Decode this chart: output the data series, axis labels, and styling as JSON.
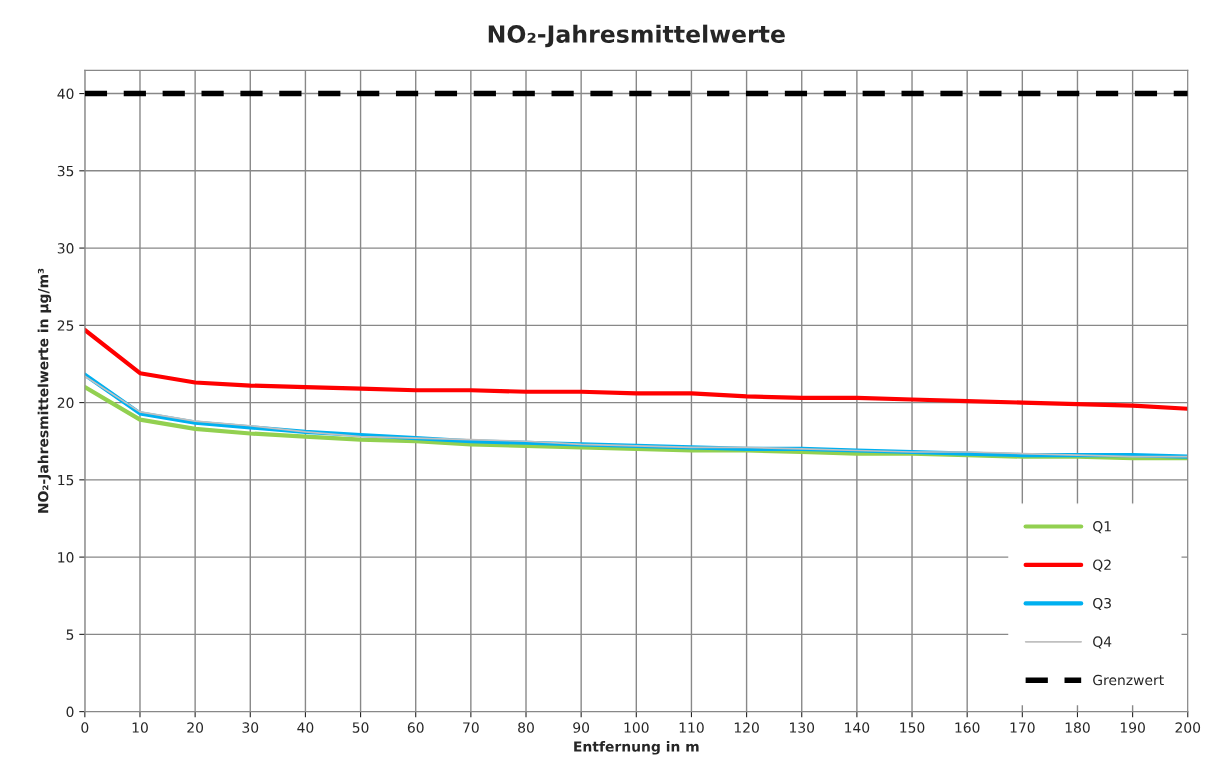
{
  "chart_data": {
    "type": "line",
    "title": "NO₂-Jahresmittelwerte",
    "xlabel": "Entfernung in m",
    "ylabel": "NO₂-Jahresmittelwerte in µg/m³",
    "x": [
      0,
      10,
      20,
      30,
      40,
      50,
      60,
      70,
      80,
      90,
      100,
      110,
      120,
      130,
      140,
      150,
      160,
      170,
      180,
      190,
      200
    ],
    "series": [
      {
        "name": "Q1",
        "color": "#92d050",
        "values": [
          21.0,
          18.9,
          18.3,
          18.0,
          17.8,
          17.6,
          17.5,
          17.3,
          17.2,
          17.1,
          17.0,
          16.9,
          16.9,
          16.8,
          16.7,
          16.7,
          16.6,
          16.5,
          16.5,
          16.4,
          16.4
        ]
      },
      {
        "name": "Q2",
        "color": "#ff0000",
        "values": [
          24.7,
          21.9,
          21.3,
          21.1,
          21.0,
          20.9,
          20.8,
          20.8,
          20.7,
          20.7,
          20.6,
          20.6,
          20.4,
          20.3,
          20.3,
          20.2,
          20.1,
          20.0,
          19.9,
          19.8,
          19.6
        ]
      },
      {
        "name": "Q3",
        "color": "#00b0f0",
        "values": [
          21.8,
          19.3,
          18.7,
          18.4,
          18.1,
          17.9,
          17.7,
          17.5,
          17.4,
          17.3,
          17.2,
          17.1,
          17.0,
          17.0,
          16.9,
          16.8,
          16.7,
          16.6,
          16.6,
          16.6,
          16.5
        ]
      },
      {
        "name": "Q4",
        "color": "#c0c0c0",
        "values": [
          21.7,
          19.4,
          18.8,
          18.5,
          18.1,
          17.8,
          17.7,
          17.6,
          17.5,
          17.3,
          17.2,
          17.1,
          17.1,
          17.0,
          16.9,
          16.8,
          16.8,
          16.7,
          16.6,
          16.5,
          16.5
        ]
      }
    ],
    "ref_lines": [
      {
        "axis": "y",
        "value": 40,
        "label": "Grenzwert",
        "color": "#000000",
        "line_style": "dashed"
      }
    ],
    "xlim": [
      0,
      200
    ],
    "xticks": [
      0,
      10,
      20,
      30,
      40,
      50,
      60,
      70,
      80,
      90,
      100,
      110,
      120,
      130,
      140,
      150,
      160,
      170,
      180,
      190,
      200
    ],
    "ylim": [
      0,
      41.5
    ],
    "yticks": [
      0,
      5,
      10,
      15,
      20,
      25,
      30,
      35,
      40
    ],
    "grid": true,
    "legend": "bottom right",
    "marker": "none",
    "line_style": "solid"
  }
}
